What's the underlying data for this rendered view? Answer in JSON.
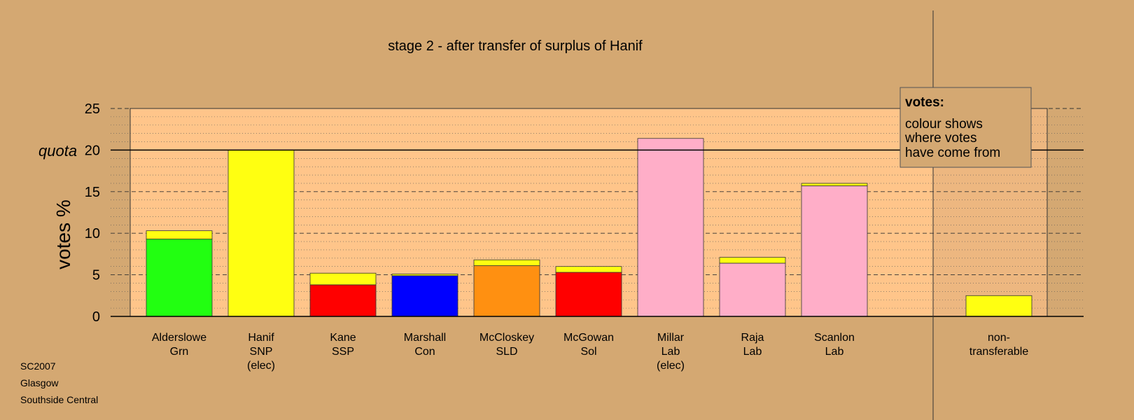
{
  "chart_data": {
    "type": "bar",
    "stacked": true,
    "title": "stage 2 - after transfer of surplus of Hanif",
    "ylabel": "votes %",
    "ylim": [
      0,
      25
    ],
    "yticks": [
      0,
      5,
      10,
      15,
      20,
      25
    ],
    "quota": 20,
    "quota_label": "quota",
    "grid": true,
    "categories": [
      {
        "lines": [
          "Alderslowe",
          "Grn"
        ],
        "segments": [
          {
            "value": 9.3,
            "color": "#22ff11"
          },
          {
            "value": 1.0,
            "color": "#ffff11"
          }
        ]
      },
      {
        "lines": [
          "Hanif",
          "SNP",
          "(elec)"
        ],
        "segments": [
          {
            "value": 20.0,
            "color": "#ffff11"
          }
        ]
      },
      {
        "lines": [
          "Kane",
          "SSP"
        ],
        "segments": [
          {
            "value": 3.8,
            "color": "#ff0000"
          },
          {
            "value": 1.4,
            "color": "#ffff11"
          }
        ]
      },
      {
        "lines": [
          "Marshall",
          "Con"
        ],
        "segments": [
          {
            "value": 4.9,
            "color": "#0000ff"
          },
          {
            "value": 0.2,
            "color": "#ffff11"
          }
        ]
      },
      {
        "lines": [
          "McCloskey",
          "SLD"
        ],
        "segments": [
          {
            "value": 6.1,
            "color": "#ff9011"
          },
          {
            "value": 0.7,
            "color": "#ffff11"
          }
        ]
      },
      {
        "lines": [
          "McGowan",
          "Sol"
        ],
        "segments": [
          {
            "value": 5.3,
            "color": "#ff0000"
          },
          {
            "value": 0.7,
            "color": "#ffff11"
          }
        ]
      },
      {
        "lines": [
          "Millar",
          "Lab",
          "(elec)"
        ],
        "segments": [
          {
            "value": 21.4,
            "color": "#ffaec8"
          }
        ]
      },
      {
        "lines": [
          "Raja",
          "Lab"
        ],
        "segments": [
          {
            "value": 6.4,
            "color": "#ffaec8"
          },
          {
            "value": 0.7,
            "color": "#ffff11"
          }
        ]
      },
      {
        "lines": [
          "Scanlon",
          "Lab"
        ],
        "segments": [
          {
            "value": 15.7,
            "color": "#ffaec8"
          },
          {
            "value": 0.3,
            "color": "#ffff11"
          }
        ]
      },
      {
        "lines": [
          "non-",
          "transferable"
        ],
        "segments": [
          {
            "value": 2.5,
            "color": "#ffff11"
          }
        ]
      }
    ]
  },
  "legend": {
    "title": "votes:",
    "lines": [
      "colour shows",
      "where votes",
      "have come from"
    ]
  },
  "footer": [
    "SC2007",
    "Glasgow",
    "Southside Central"
  ],
  "colors": {
    "background": "#d4a872",
    "plot_background": "#ffc58a"
  }
}
